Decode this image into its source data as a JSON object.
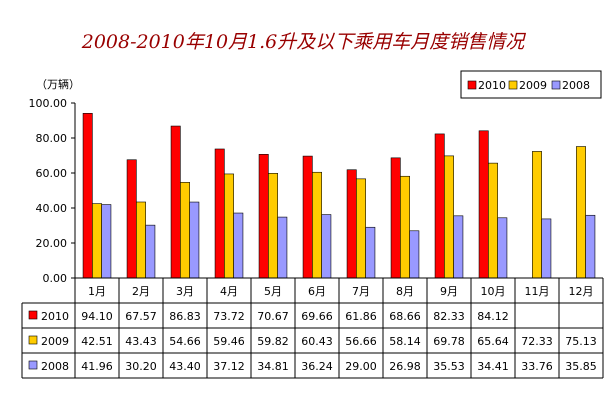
{
  "chart_data": {
    "type": "bar",
    "title": "2008-2010年10月1.6升及以下乘用车月度销售情况",
    "ylabel": "（万辆）",
    "xlabel": "",
    "ylim": [
      0,
      100
    ],
    "yticks": [
      "100.00",
      "80.00",
      "60.00",
      "40.00",
      "20.00",
      "0.00"
    ],
    "categories": [
      "1月",
      "2月",
      "3月",
      "4月",
      "5月",
      "6月",
      "7月",
      "8月",
      "9月",
      "10月",
      "11月",
      "12月"
    ],
    "series": [
      {
        "name": "2010",
        "color": "#ff0000",
        "values": [
          94.1,
          67.57,
          86.83,
          73.72,
          70.67,
          69.66,
          61.86,
          68.66,
          82.33,
          84.12,
          null,
          null
        ]
      },
      {
        "name": "2009",
        "color": "#ffcc00",
        "values": [
          42.51,
          43.43,
          54.66,
          59.46,
          59.82,
          60.43,
          56.66,
          58.14,
          69.78,
          65.64,
          72.33,
          75.13
        ]
      },
      {
        "name": "2008",
        "color": "#9999ff",
        "values": [
          41.96,
          30.2,
          43.4,
          37.12,
          34.81,
          36.24,
          29.0,
          26.98,
          35.53,
          34.41,
          33.76,
          35.85
        ]
      }
    ],
    "table": {
      "rows": [
        {
          "name": "2010",
          "cells": [
            "94.10",
            "67.57",
            "86.83",
            "73.72",
            "70.67",
            "69.66",
            "61.86",
            "68.66",
            "82.33",
            "84.12",
            "",
            ""
          ]
        },
        {
          "name": "2009",
          "cells": [
            "42.51",
            "43.43",
            "54.66",
            "59.46",
            "59.82",
            "60.43",
            "56.66",
            "58.14",
            "69.78",
            "65.64",
            "72.33",
            "75.13"
          ]
        },
        {
          "name": "2008",
          "cells": [
            "41.96",
            "30.20",
            "43.40",
            "37.12",
            "34.81",
            "36.24",
            "29.00",
            "26.98",
            "35.53",
            "34.41",
            "33.76",
            "35.85"
          ]
        }
      ]
    },
    "legend_position": "top-right",
    "grid": false
  }
}
